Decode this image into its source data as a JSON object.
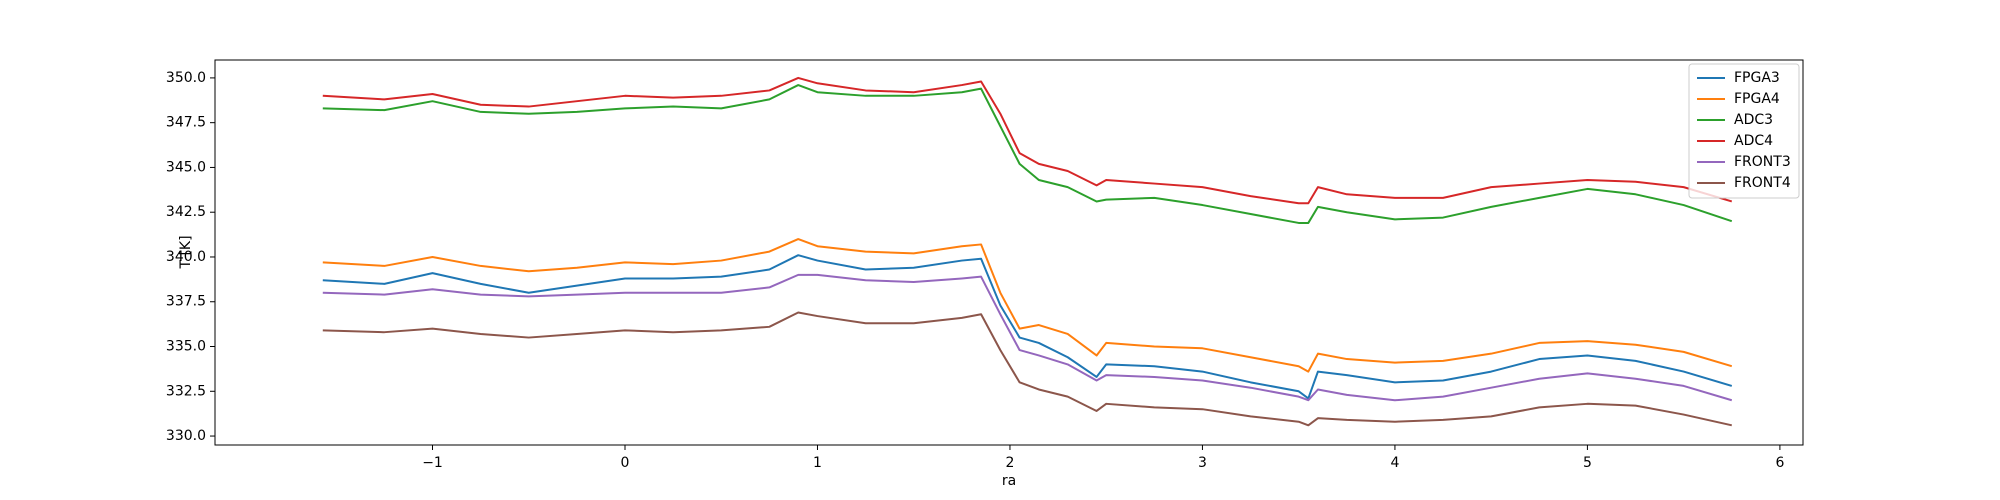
{
  "chart_data": {
    "type": "line",
    "xlabel": "ra",
    "ylabel": "T [K]",
    "x": [
      -1.57,
      -1.25,
      -1,
      -0.75,
      -0.5,
      -0.25,
      0,
      0.25,
      0.5,
      0.75,
      0.9,
      1.0,
      1.25,
      1.5,
      1.75,
      1.85,
      1.95,
      2.05,
      2.15,
      2.3,
      2.45,
      2.5,
      2.75,
      3.0,
      3.25,
      3.5,
      3.55,
      3.6,
      3.75,
      4.0,
      4.25,
      4.5,
      4.75,
      5.0,
      5.25,
      5.5,
      5.75
    ],
    "series": [
      {
        "name": "FPGA3",
        "color": "#1f77b4",
        "values": [
          338.7,
          338.5,
          339.1,
          338.5,
          338.0,
          338.4,
          338.8,
          338.8,
          338.9,
          339.3,
          340.1,
          339.8,
          339.3,
          339.4,
          339.8,
          339.9,
          337.3,
          335.5,
          335.2,
          334.4,
          333.3,
          334.0,
          333.9,
          333.6,
          333.0,
          332.5,
          332.1,
          333.6,
          333.4,
          333.0,
          333.1,
          333.6,
          334.3,
          334.5,
          334.2,
          333.6,
          332.8
        ]
      },
      {
        "name": "FPGA4",
        "color": "#ff7f0e",
        "values": [
          339.7,
          339.5,
          340.0,
          339.5,
          339.2,
          339.4,
          339.7,
          339.6,
          339.8,
          340.3,
          341.0,
          340.6,
          340.3,
          340.2,
          340.6,
          340.7,
          338.0,
          336.0,
          336.2,
          335.7,
          334.5,
          335.2,
          335.0,
          334.9,
          334.4,
          333.9,
          333.6,
          334.6,
          334.3,
          334.1,
          334.2,
          334.6,
          335.2,
          335.3,
          335.1,
          334.7,
          333.9
        ]
      },
      {
        "name": "ADC3",
        "color": "#2ca02c",
        "values": [
          348.3,
          348.2,
          348.7,
          348.1,
          348.0,
          348.1,
          348.3,
          348.4,
          348.3,
          348.8,
          349.6,
          349.2,
          349.0,
          349.0,
          349.2,
          349.4,
          347.3,
          345.2,
          344.3,
          343.9,
          343.1,
          343.2,
          343.3,
          342.9,
          342.4,
          341.9,
          341.9,
          342.8,
          342.5,
          342.1,
          342.2,
          342.8,
          343.3,
          343.8,
          343.5,
          342.9,
          342.0
        ]
      },
      {
        "name": "ADC4",
        "color": "#d62728",
        "values": [
          349.0,
          348.8,
          349.1,
          348.5,
          348.4,
          348.7,
          349.0,
          348.9,
          349.0,
          349.3,
          350.0,
          349.7,
          349.3,
          349.2,
          349.6,
          349.8,
          348.0,
          345.8,
          345.2,
          344.8,
          344.0,
          344.3,
          344.1,
          343.9,
          343.4,
          343.0,
          343.0,
          343.9,
          343.5,
          343.3,
          343.3,
          343.9,
          344.1,
          344.3,
          344.2,
          343.9,
          343.1
        ]
      },
      {
        "name": "FRONT3",
        "color": "#9467bd",
        "values": [
          338.0,
          337.9,
          338.2,
          337.9,
          337.8,
          337.9,
          338.0,
          338.0,
          338.0,
          338.3,
          339.0,
          339.0,
          338.7,
          338.6,
          338.8,
          338.9,
          336.8,
          334.8,
          334.5,
          334.0,
          333.1,
          333.4,
          333.3,
          333.1,
          332.7,
          332.2,
          332.0,
          332.6,
          332.3,
          332.0,
          332.2,
          332.7,
          333.2,
          333.5,
          333.2,
          332.8,
          332.0
        ]
      },
      {
        "name": "FRONT4",
        "color": "#8c564b",
        "values": [
          335.9,
          335.8,
          336.0,
          335.7,
          335.5,
          335.7,
          335.9,
          335.8,
          335.9,
          336.1,
          336.9,
          336.7,
          336.3,
          336.3,
          336.6,
          336.8,
          334.8,
          333.0,
          332.6,
          332.2,
          331.4,
          331.8,
          331.6,
          331.5,
          331.1,
          330.8,
          330.6,
          331.0,
          330.9,
          330.8,
          330.9,
          331.1,
          331.6,
          331.8,
          331.7,
          331.2,
          330.6
        ]
      }
    ],
    "xlim": [
      -2.13,
      6.12
    ],
    "xticks": [
      {
        "value": -1,
        "label": "−1"
      },
      0,
      1,
      2,
      3,
      4,
      5,
      6
    ],
    "ylim": [
      329.5,
      351.0
    ],
    "yticks": [
      {
        "value": 330,
        "label": "330.0"
      },
      {
        "value": 332.5,
        "label": "332.5"
      },
      {
        "value": 335,
        "label": "335.0"
      },
      {
        "value": 337.5,
        "label": "337.5"
      },
      {
        "value": 340,
        "label": "340.0"
      },
      {
        "value": 342.5,
        "label": "342.5"
      },
      {
        "value": 345,
        "label": "345.0"
      },
      {
        "value": 347.5,
        "label": "347.5"
      },
      {
        "value": 350,
        "label": "350.0"
      }
    ],
    "grid": false,
    "legend": "upper right"
  }
}
